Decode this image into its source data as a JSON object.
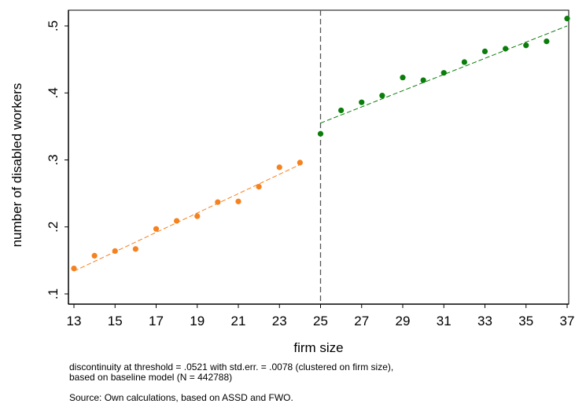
{
  "chart_data": {
    "type": "scatter",
    "xlabel": "firm size",
    "ylabel": "number of disabled workers",
    "xlim": [
      13,
      37
    ],
    "ylim": [
      0.1,
      0.5
    ],
    "x_ticks": [
      "13",
      "15",
      "17",
      "19",
      "21",
      "23",
      "25",
      "27",
      "29",
      "31",
      "33",
      "35",
      "37"
    ],
    "y_ticks": [
      ".1",
      ".2",
      ".3",
      ".4",
      ".5"
    ],
    "threshold": 25,
    "grid": false,
    "series": [
      {
        "color": "#f5811f",
        "x": [
          13,
          14,
          15,
          16,
          17,
          18,
          19,
          20,
          21,
          22,
          23,
          24
        ],
        "y": [
          0.138,
          0.157,
          0.164,
          0.167,
          0.197,
          0.209,
          0.216,
          0.237,
          0.238,
          0.26,
          0.289,
          0.296
        ],
        "fit": {
          "x": [
            13,
            24
          ],
          "y": [
            0.134,
            0.293
          ]
        }
      },
      {
        "color": "#0a7d0a",
        "x": [
          25,
          26,
          27,
          28,
          29,
          30,
          31,
          32,
          33,
          34,
          35,
          36,
          37
        ],
        "y": [
          0.339,
          0.374,
          0.386,
          0.396,
          0.423,
          0.419,
          0.43,
          0.446,
          0.462,
          0.466,
          0.471,
          0.477,
          0.511
        ],
        "fit": {
          "x": [
            25,
            37
          ],
          "y": [
            0.355,
            0.5
          ]
        }
      }
    ]
  },
  "notes": {
    "line1": "discontinuity at threshold = .0521 with std.err. = .0078 (clustered on firm size),",
    "line2": "based on baseline model (N = 442788)",
    "source": "Source: Own calculations, based on ASSD and FWO."
  }
}
